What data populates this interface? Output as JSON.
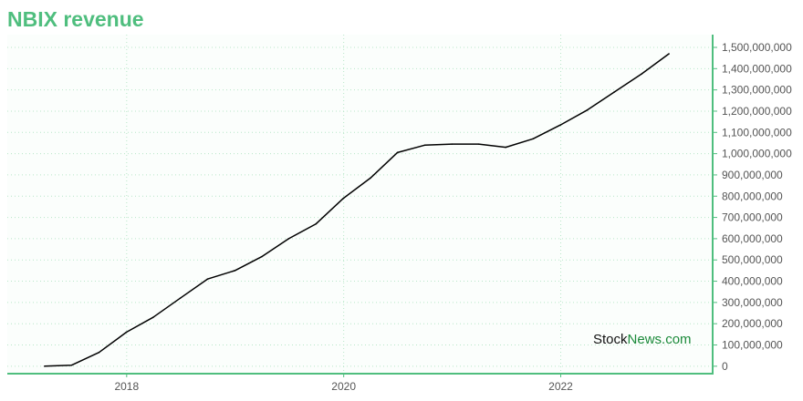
{
  "chart_data": {
    "type": "line",
    "title": "NBIX revenue",
    "xlabel": "",
    "ylabel": "",
    "x_tick_labels": [
      "2018",
      "2020",
      "2022"
    ],
    "x_ticks": [
      2018,
      2020,
      2022
    ],
    "xlim": [
      2016.9,
      2023.4
    ],
    "ylim": [
      -35000000,
      1560000000
    ],
    "y_ticks": [
      0,
      100000000,
      200000000,
      300000000,
      400000000,
      500000000,
      600000000,
      700000000,
      800000000,
      900000000,
      1000000000,
      1100000000,
      1200000000,
      1300000000,
      1400000000,
      1500000000
    ],
    "y_tick_labels": [
      "0",
      "100,000,000",
      "200,000,000",
      "300,000,000",
      "400,000,000",
      "500,000,000",
      "600,000,000",
      "700,000,000",
      "800,000,000",
      "900,000,000",
      "1,000,000,000",
      "1,100,000,000",
      "1,200,000,000",
      "1,300,000,000",
      "1,400,000,000",
      "1,500,000,000"
    ],
    "y_axis_side": "right",
    "grid": true,
    "line_color": "#000000",
    "accent_color": "#4fbe7e",
    "series": [
      {
        "x": [
          "2017-03-31",
          "2017-06-30",
          "2017-09-30",
          "2017-12-31",
          "2018-03-31",
          "2018-06-30",
          "2018-09-30",
          "2018-12-31",
          "2019-03-31",
          "2019-06-30",
          "2019-09-30",
          "2019-12-31",
          "2020-03-31",
          "2020-06-30",
          "2020-09-30",
          "2020-12-31",
          "2021-03-31",
          "2021-06-30",
          "2021-09-30",
          "2021-12-31",
          "2022-03-31",
          "2022-06-30",
          "2022-09-30",
          "2022-12-31"
        ],
        "values": [
          0,
          5000000,
          65000000,
          160000000,
          230000000,
          320000000,
          410000000,
          450000000,
          515000000,
          600000000,
          670000000,
          790000000,
          885000000,
          1005000000,
          1040000000,
          1045000000,
          1045000000,
          1030000000,
          1070000000,
          1135000000,
          1205000000,
          1290000000,
          1375000000,
          1470000000
        ]
      }
    ]
  },
  "watermark": {
    "part1": "Stock",
    "part2": "News.com"
  }
}
